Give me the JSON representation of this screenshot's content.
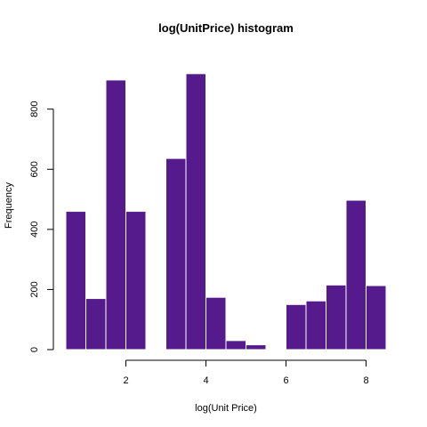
{
  "chart_data": {
    "type": "bar",
    "title": "log(UnitPrice) histogram",
    "xlabel": "log(Unit Price)",
    "ylabel": "Frequency",
    "bin_width": 0.5,
    "bins": [
      {
        "x0": 0.5,
        "x1": 1.0,
        "value": 460
      },
      {
        "x0": 1.0,
        "x1": 1.5,
        "value": 170
      },
      {
        "x0": 1.5,
        "x1": 2.0,
        "value": 897
      },
      {
        "x0": 2.0,
        "x1": 2.5,
        "value": 460
      },
      {
        "x0": 2.5,
        "x1": 3.0,
        "value": 0
      },
      {
        "x0": 3.0,
        "x1": 3.5,
        "value": 636
      },
      {
        "x0": 3.5,
        "x1": 4.0,
        "value": 918
      },
      {
        "x0": 4.0,
        "x1": 4.5,
        "value": 174
      },
      {
        "x0": 4.5,
        "x1": 5.0,
        "value": 30
      },
      {
        "x0": 5.0,
        "x1": 5.5,
        "value": 16
      },
      {
        "x0": 5.5,
        "x1": 6.0,
        "value": 0
      },
      {
        "x0": 6.0,
        "x1": 6.5,
        "value": 150
      },
      {
        "x0": 6.5,
        "x1": 7.0,
        "value": 162
      },
      {
        "x0": 7.0,
        "x1": 7.5,
        "value": 215
      },
      {
        "x0": 7.5,
        "x1": 8.0,
        "value": 497
      },
      {
        "x0": 8.0,
        "x1": 8.5,
        "value": 213
      }
    ],
    "xlim": [
      0.5,
      8.5
    ],
    "ylim": [
      0,
      950
    ],
    "xticks": [
      2,
      4,
      6,
      8
    ],
    "yticks": [
      0,
      200,
      400,
      600,
      800
    ],
    "bar_color": "#551A8B",
    "bar_border_color": "#ffffff",
    "grid": false,
    "legend": "none"
  }
}
